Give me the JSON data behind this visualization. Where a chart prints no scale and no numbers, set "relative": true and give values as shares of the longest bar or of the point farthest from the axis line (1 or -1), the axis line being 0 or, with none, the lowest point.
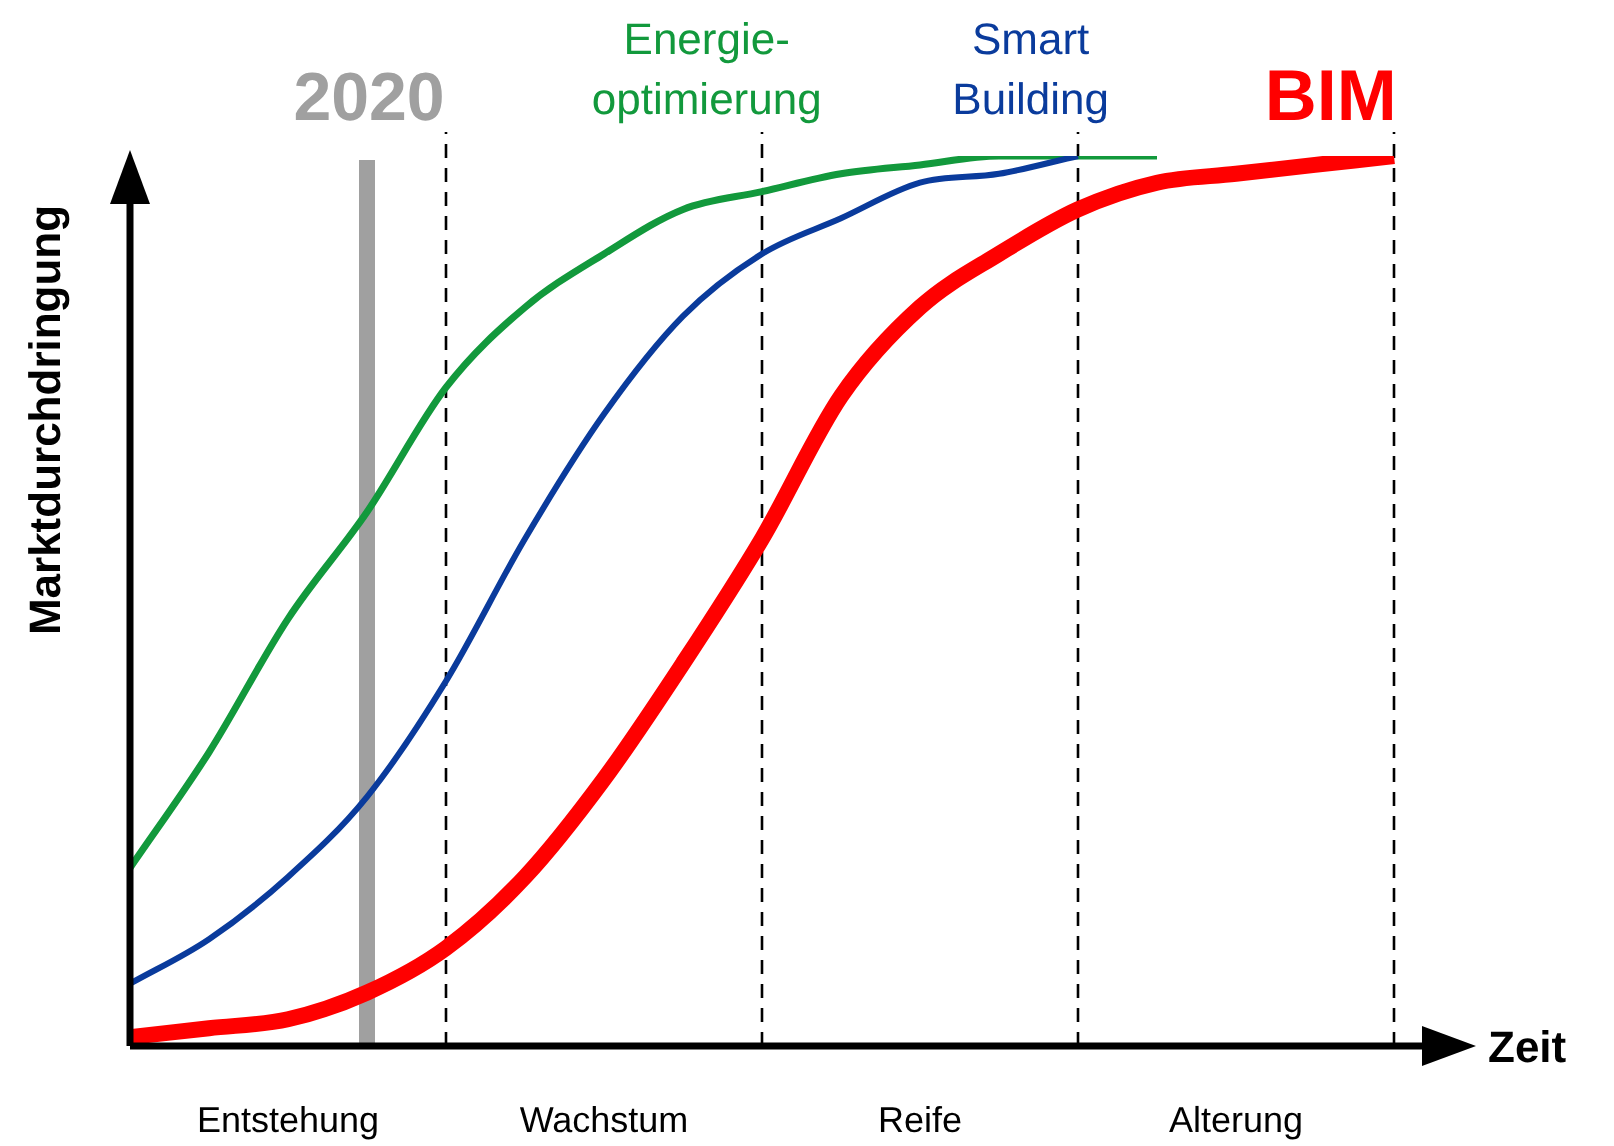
{
  "chart_data": {
    "type": "line",
    "relative": true,
    "xlabel": "Zeit",
    "ylabel": "Marktdurchdringung",
    "categories": [
      null,
      null,
      "Entstehung",
      null,
      null,
      null,
      "Wachstum",
      null,
      null,
      null,
      "Reife",
      null,
      null,
      null,
      "Alterung",
      null,
      null
    ],
    "series": [
      {
        "name": "Energie-optimierung",
        "color": "#12993c",
        "values": [
          0.2,
          0.33,
          0.48,
          0.6,
          0.74,
          0.83,
          0.89,
          0.94,
          0.96,
          0.98,
          0.99,
          1,
          1,
          1,
          null,
          null,
          null
        ]
      },
      {
        "name": "Smart Building",
        "color": "#0a3b9c",
        "values": [
          0.07,
          0.12,
          0.19,
          0.28,
          0.41,
          0.57,
          0.71,
          0.82,
          0.89,
          0.93,
          0.97,
          0.98,
          1,
          null,
          null,
          null,
          null
        ]
      },
      {
        "name": "BIM",
        "color": "#ff0000",
        "values": [
          0.01,
          0.02,
          0.03,
          0.06,
          0.11,
          0.19,
          0.3,
          0.43,
          0.57,
          0.73,
          0.83,
          0.89,
          0.94,
          0.97,
          0.98,
          0.99,
          1
        ]
      }
    ],
    "annotations": [
      "2020"
    ],
    "grid": "x",
    "legend": false,
    "marker": "none",
    "line_style": "solid"
  }
}
